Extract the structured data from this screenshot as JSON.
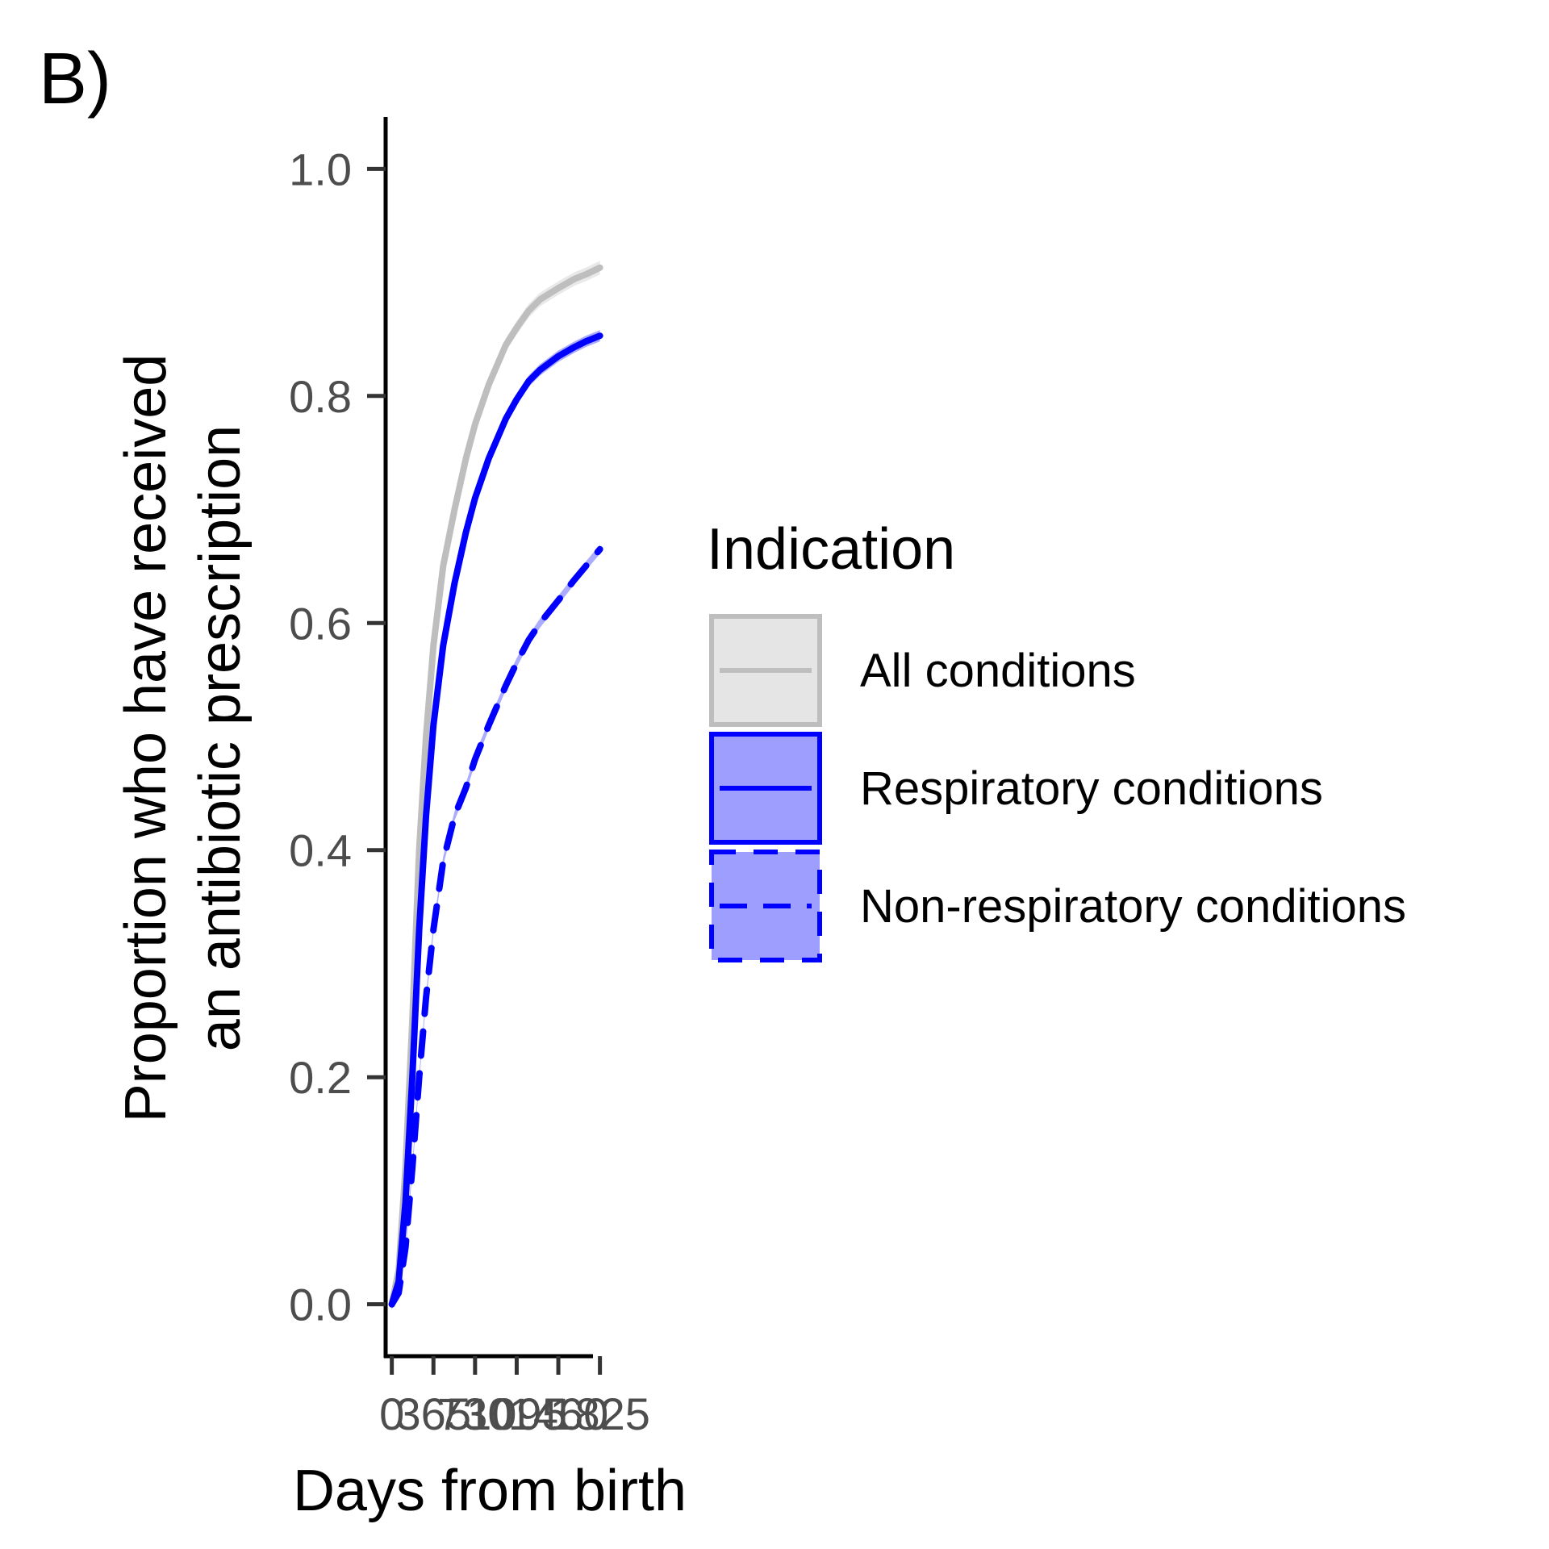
{
  "panel_label": "B)",
  "chart_data": {
    "type": "line",
    "xlabel": "Days from birth",
    "ylabel_lines": [
      "Proportion who have received",
      "an antibiotic prescription"
    ],
    "xlim": [
      -40,
      1870
    ],
    "ylim": [
      -0.045,
      1.045
    ],
    "x_ticks": [
      0,
      365,
      730,
      1095,
      1460,
      1825
    ],
    "x_tick_labels": [
      "0",
      "365",
      "730",
      "1095",
      "1460",
      "1825"
    ],
    "y_ticks": [
      0.0,
      0.2,
      0.4,
      0.6,
      0.8,
      1.0
    ],
    "y_tick_labels": [
      "0.0",
      "0.2",
      "0.4",
      "0.6",
      "0.8",
      "1.0"
    ],
    "legend": {
      "title": "Indication",
      "placement": "right"
    },
    "series": [
      {
        "name": "All conditions",
        "color": "#BEBEBE",
        "fill": "#E5E5E5",
        "linetype": "solid",
        "x": [
          0,
          60,
          120,
          180,
          240,
          300,
          365,
          450,
          550,
          650,
          730,
          850,
          1000,
          1095,
          1200,
          1300,
          1460,
          1600,
          1700,
          1825
        ],
        "y": [
          0.0,
          0.03,
          0.12,
          0.25,
          0.4,
          0.5,
          0.58,
          0.65,
          0.7,
          0.745,
          0.775,
          0.81,
          0.845,
          0.86,
          0.875,
          0.885,
          0.895,
          0.903,
          0.907,
          0.913
        ],
        "band": [
          0.006,
          0.006,
          0.006,
          0.006,
          0.006,
          0.006,
          0.006,
          0.006,
          0.006,
          0.006,
          0.006,
          0.006,
          0.006,
          0.006,
          0.006,
          0.006,
          0.006,
          0.006,
          0.006,
          0.006
        ]
      },
      {
        "name": "Respiratory conditions",
        "color": "#0000FF",
        "fill": "#9E9EFF",
        "linetype": "solid",
        "x": [
          0,
          60,
          120,
          180,
          240,
          300,
          365,
          450,
          550,
          650,
          730,
          850,
          1000,
          1095,
          1200,
          1300,
          1460,
          1600,
          1700,
          1825
        ],
        "y": [
          0.0,
          0.02,
          0.09,
          0.2,
          0.33,
          0.43,
          0.51,
          0.58,
          0.635,
          0.68,
          0.71,
          0.745,
          0.78,
          0.797,
          0.813,
          0.823,
          0.835,
          0.843,
          0.848,
          0.853
        ],
        "band": [
          0.005,
          0.005,
          0.005,
          0.005,
          0.005,
          0.005,
          0.005,
          0.005,
          0.005,
          0.005,
          0.005,
          0.005,
          0.005,
          0.005,
          0.005,
          0.005,
          0.005,
          0.005,
          0.005,
          0.005
        ]
      },
      {
        "name": "Non-respiratory conditions",
        "color": "#0000FF",
        "fill": "#9E9EFF",
        "linetype": "dashed",
        "x": [
          0,
          60,
          120,
          180,
          240,
          300,
          365,
          450,
          550,
          650,
          730,
          850,
          1000,
          1095,
          1200,
          1300,
          1460,
          1600,
          1700,
          1825
        ],
        "y": [
          0.0,
          0.01,
          0.05,
          0.12,
          0.2,
          0.27,
          0.33,
          0.39,
          0.43,
          0.455,
          0.48,
          0.51,
          0.545,
          0.565,
          0.585,
          0.6,
          0.62,
          0.638,
          0.65,
          0.665
        ],
        "band": [
          0.004,
          0.004,
          0.004,
          0.004,
          0.004,
          0.004,
          0.004,
          0.004,
          0.004,
          0.004,
          0.004,
          0.004,
          0.004,
          0.004,
          0.004,
          0.004,
          0.004,
          0.004,
          0.004,
          0.004
        ]
      }
    ]
  }
}
